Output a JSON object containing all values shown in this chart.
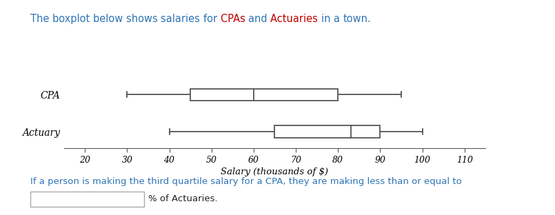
{
  "title": "The boxplot below shows salaries for CPAs and Actuaries in a town.",
  "title_color_plain": "#2e74b5",
  "title_words_colored": {
    "CPAs": "#c00000",
    "Actuaries": "#c00000"
  },
  "xlabel": "Salary (thousands of $)",
  "xlim": [
    15,
    115
  ],
  "xticks": [
    20,
    30,
    40,
    50,
    60,
    70,
    80,
    90,
    100,
    110
  ],
  "categories": [
    "CPA",
    "Actuary"
  ],
  "cpa": {
    "min": 30,
    "q1": 45,
    "median": 60,
    "q3": 80,
    "max": 95
  },
  "actuary": {
    "min": 40,
    "q1": 65,
    "median": 83,
    "q3": 90,
    "max": 100
  },
  "box_edge_color": "#555555",
  "line_width": 1.3,
  "bottom_text_color": "#2e74b5",
  "bottom_text": "If a person is making the third quartile salary for a CPA, they are making less than or equal to",
  "bottom_text2": "% of Actuaries.",
  "background_color": "#ffffff"
}
